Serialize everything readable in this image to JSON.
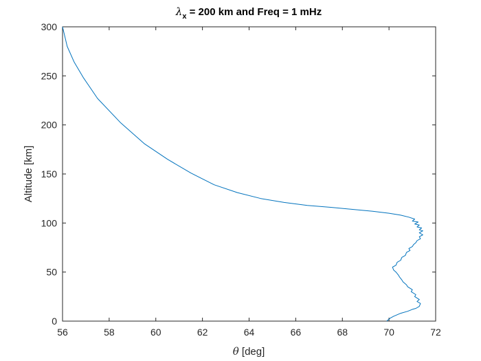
{
  "chart_data": {
    "type": "line",
    "title": {
      "symbol": "λ",
      "subscript": "x",
      "rest": " = 200 km and Freq = 1 mHz"
    },
    "xlabel": {
      "symbol": "θ",
      "rest": " [deg]"
    },
    "ylabel": "Altitude [km]",
    "xlim": [
      56,
      72
    ],
    "ylim": [
      0,
      300
    ],
    "xticks": [
      "56",
      "58",
      "60",
      "62",
      "64",
      "66",
      "68",
      "70",
      "72"
    ],
    "yticks": [
      "0",
      "50",
      "100",
      "150",
      "200",
      "250",
      "300"
    ],
    "grid": false,
    "line_color": "#0072BD",
    "series": [
      {
        "x": [
          69.9,
          70.05,
          70.2,
          70.5,
          70.8,
          71.0,
          71.15,
          71.3,
          71.35,
          71.2,
          71.3,
          71.1,
          71.15,
          70.95,
          71.0,
          70.8,
          70.75,
          70.6,
          70.55,
          70.45,
          70.4,
          70.3,
          70.2,
          70.15,
          70.3,
          70.35,
          70.5,
          70.55,
          70.7,
          70.75,
          70.9,
          70.85,
          71.0,
          71.05,
          71.15,
          71.2,
          71.35,
          71.3,
          71.45,
          71.3,
          71.45,
          71.3,
          71.4,
          71.2,
          71.3,
          71.1,
          71.25,
          71.0,
          71.1,
          70.85,
          70.5,
          70.0,
          69.3,
          68.4,
          67.5,
          66.5,
          65.5,
          64.5,
          63.5,
          62.5,
          61.5,
          60.5,
          59.5,
          58.5,
          57.5,
          56.9,
          56.5,
          56.2,
          56.0
        ],
        "y": [
          0,
          3,
          5,
          8,
          10,
          12,
          13,
          15,
          18,
          20,
          22,
          25,
          27,
          30,
          32,
          35,
          37,
          40,
          42,
          45,
          47,
          50,
          52,
          55,
          57,
          60,
          62,
          65,
          67,
          70,
          72,
          74,
          76,
          78,
          80,
          82,
          84,
          86,
          88,
          90,
          92,
          93,
          95,
          96,
          98,
          99,
          101,
          102,
          104,
          106,
          108,
          110,
          112,
          114,
          116,
          118,
          121,
          125,
          131,
          139,
          151,
          165,
          181,
          202,
          227,
          248,
          264,
          280,
          300
        ]
      }
    ]
  }
}
